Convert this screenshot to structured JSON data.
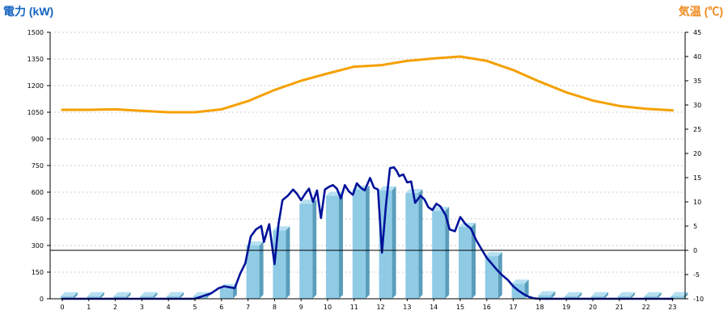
{
  "chart_data": {
    "type": "bar",
    "left_axis_title": "電力 (kW)",
    "right_axis_title": "気温 (℃)",
    "colors": {
      "left_title": "#1565c0",
      "right_title": "#ef8a1c",
      "bar_front": "#8fcbe5",
      "bar_top": "#b6e0f1",
      "bar_side": "#5a9dbb",
      "power_line": "#00129a",
      "temp_line": "#f5a000",
      "grid": "#bdbdbd",
      "zero_temp_line": "#000000"
    },
    "y_left": {
      "min": 0,
      "max": 1500,
      "ticks": [
        "0",
        "150",
        "300",
        "450",
        "600",
        "750",
        "900",
        "1050",
        "1200",
        "1350",
        "1500"
      ]
    },
    "y_right": {
      "min": -10,
      "max": 45,
      "ticks": [
        "-10",
        "-5",
        "0",
        "5",
        "10",
        "15",
        "20",
        "25",
        "30",
        "35",
        "40",
        "45"
      ]
    },
    "grid": true,
    "categories": [
      "0",
      "1",
      "2",
      "3",
      "4",
      "5",
      "6",
      "7",
      "8",
      "9",
      "10",
      "11",
      "12",
      "13",
      "14",
      "15",
      "16",
      "17",
      "18",
      "19",
      "20",
      "21",
      "22",
      "23"
    ],
    "series": [
      {
        "kind": "bar",
        "axis": "left",
        "values": [
          15,
          15,
          15,
          15,
          15,
          15,
          60,
          300,
          385,
          535,
          580,
          615,
          610,
          595,
          495,
          405,
          240,
          85,
          20,
          15,
          15,
          15,
          15,
          15
        ]
      },
      {
        "kind": "line",
        "axis": "left",
        "x": [
          0,
          1,
          2,
          3,
          4,
          5,
          5.3,
          5.6,
          5.9,
          6.1,
          6.3,
          6.5,
          6.7,
          6.9,
          7.1,
          7.3,
          7.5,
          7.6,
          7.8,
          8,
          8.15,
          8.3,
          8.5,
          8.7,
          8.85,
          9,
          9.15,
          9.3,
          9.45,
          9.6,
          9.75,
          9.9,
          10.05,
          10.2,
          10.35,
          10.5,
          10.65,
          10.8,
          10.95,
          11.1,
          11.25,
          11.4,
          11.6,
          11.75,
          11.9,
          12.05,
          12.2,
          12.35,
          12.5,
          12.6,
          12.7,
          12.85,
          13,
          13.15,
          13.3,
          13.5,
          13.65,
          13.8,
          13.95,
          14.1,
          14.25,
          14.45,
          14.6,
          14.8,
          15,
          15.2,
          15.4,
          15.6,
          15.8,
          16,
          16.2,
          16.4,
          16.6,
          16.8,
          17,
          17.2,
          17.4,
          17.6,
          17.8,
          18,
          19,
          20,
          21,
          22,
          23
        ],
        "values": [
          0,
          0,
          0,
          0,
          0,
          0,
          15,
          30,
          60,
          70,
          65,
          60,
          140,
          200,
          350,
          390,
          410,
          320,
          420,
          195,
          420,
          555,
          580,
          615,
          590,
          555,
          590,
          620,
          545,
          610,
          455,
          615,
          630,
          640,
          620,
          565,
          640,
          605,
          585,
          650,
          625,
          610,
          680,
          625,
          615,
          260,
          530,
          735,
          740,
          720,
          690,
          700,
          655,
          660,
          540,
          580,
          560,
          515,
          500,
          535,
          520,
          470,
          390,
          380,
          460,
          420,
          395,
          330,
          280,
          230,
          195,
          160,
          130,
          105,
          70,
          45,
          25,
          10,
          2,
          0,
          0,
          0,
          0,
          0,
          0
        ]
      },
      {
        "kind": "line",
        "axis": "right",
        "x": [
          0,
          1,
          2,
          3,
          4,
          5,
          6,
          7,
          8,
          9,
          10,
          11,
          12,
          13,
          14,
          15,
          16,
          17,
          18,
          19,
          20,
          21,
          22,
          23
        ],
        "values": [
          29,
          29,
          29.1,
          28.8,
          28.5,
          28.5,
          29.1,
          30.8,
          33.1,
          35,
          36.5,
          37.9,
          38.2,
          39.1,
          39.6,
          40,
          39.1,
          37.2,
          34.8,
          32.6,
          30.9,
          29.8,
          29.2,
          28.9
        ]
      }
    ]
  }
}
